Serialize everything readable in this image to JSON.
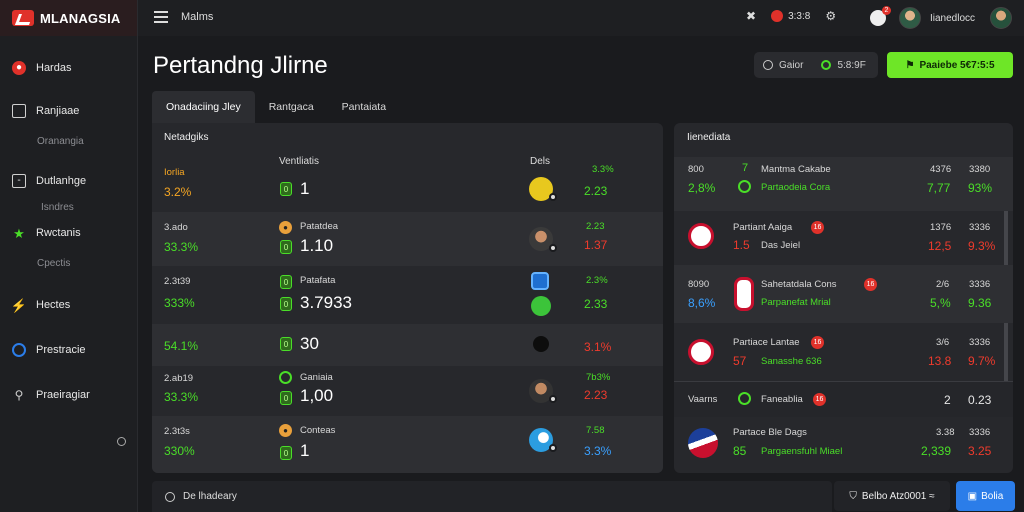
{
  "brand": {
    "name": "MLANAGSIA"
  },
  "topbar": {
    "menu_label": "Malms",
    "stat": "3:3:8",
    "user": "Iianedlocc"
  },
  "sidebar": {
    "items": [
      {
        "label": "Hardas",
        "icon": "red-circle-icon"
      },
      {
        "label": "Ranjiaae",
        "icon": "box-icon"
      },
      {
        "label": "Oranangia",
        "sub": true
      },
      {
        "label": "Dutlanhge",
        "icon": "square-icon"
      },
      {
        "label": "Isndres",
        "sub": true
      },
      {
        "label": "Rwctanis",
        "icon": "star-icon"
      },
      {
        "label": "Cpectis",
        "sub": true
      },
      {
        "label": "Hectes",
        "icon": "green-bolt-icon"
      },
      {
        "label": "Prestracie",
        "icon": "blue-ring-icon"
      },
      {
        "label": "Praeiragiar",
        "icon": "person-icon"
      }
    ]
  },
  "header": {
    "title": "Pertandng Jlirne",
    "search_label": "Gaior",
    "search_value": "5:8:9F",
    "cta_label": "Paaiebe 5€7:5:5"
  },
  "tabs": [
    {
      "label": "Onadaciing Jley",
      "active": true
    },
    {
      "label": "Rantgaca"
    },
    {
      "label": "Pantaiata"
    }
  ],
  "main_panel": {
    "head": "Netadgiks",
    "col_team": "Ventliatis",
    "col_odds": "Dels",
    "rows": [
      {
        "a": "Iorlia",
        "b": "3.2%",
        "b_color": "orange",
        "c_name": "",
        "c_val": "1",
        "c_ico": "g",
        "d_top": "3.3%",
        "d_val": "2.23",
        "d_color": "green",
        "ico": "yellow-ball-icon"
      },
      {
        "a": "3.ado",
        "b": "33.3%",
        "b_color": "green",
        "c_name": "Patatdea",
        "c_val": "1.10",
        "c_ico": "g",
        "d_top": "2.23",
        "d_val": "1.37",
        "d_color": "red",
        "ico": "player-avatar-icon"
      },
      {
        "a": "2.3t39",
        "b": "333%",
        "b_color": "green",
        "c_name": "Patafata",
        "c_val": "3.7933",
        "c_ico": "g",
        "d_top": "2.3%",
        "d_val": "2.33",
        "d_color": "green",
        "ico": "blue-shield-icon"
      },
      {
        "a": "",
        "b": "54.1%",
        "b_color": "green",
        "c_name": "",
        "c_val": "30",
        "c_ico": "g",
        "d_top": "",
        "d_val": "3.1%",
        "d_color": "red",
        "ico": "dark-ball-icon"
      },
      {
        "a": "2.ab19",
        "b": "33.3%",
        "b_color": "green",
        "c_name": "Ganiaia",
        "c_val": "1,00",
        "c_ico": "g",
        "d_top": "7b3%",
        "d_val": "2.23",
        "d_color": "red",
        "ico": "player-avatar-icon"
      },
      {
        "a": "2.3t3s",
        "b": "330%",
        "b_color": "green",
        "c_name": "Conteas",
        "c_val": "1",
        "c_ico": "g",
        "d_top": "7.58",
        "d_val": "3.3%",
        "d_color": "blue",
        "ico": "globe-icon"
      }
    ]
  },
  "right_panel": {
    "head": "Iienediata",
    "rows": [
      {
        "l1": "800",
        "l2": "2,8%",
        "l2_color": "green",
        "t1": "Mantma Cakabe",
        "t2": "Partaodeia Cora",
        "v1": "4376",
        "v2": "7,77",
        "v2_color": "green",
        "w1": "3380",
        "w2": "93%",
        "w2_color": "green"
      },
      {
        "l1": "",
        "l2": "1.5",
        "l2_color": "red",
        "t1": "Partiant Aaiga",
        "t2": "Das Jeiel",
        "v1": "1376",
        "v2": "12,5",
        "v2_color": "red",
        "w1": "3336",
        "w2": "9.3%",
        "w2_color": "red"
      },
      {
        "l1": "8090",
        "l2": "8,6%",
        "l2_color": "blue",
        "t1": "Sahetatdala Cons",
        "t2": "Parpanefat Mrial",
        "v1": "2/6",
        "v2": "5,%",
        "v2_color": "green",
        "w1": "3336",
        "w2": "9.36",
        "w2_color": "green"
      },
      {
        "l1": "",
        "l2": "57",
        "l2_color": "red",
        "t1": "Partiace Lantae",
        "t2": "Sanasshe 636",
        "v1": "3/6",
        "v2": "13.8",
        "v2_color": "red",
        "w1": "3336",
        "w2": "9.7%",
        "w2_color": "red"
      }
    ],
    "mid": {
      "label": "Vaarns",
      "team": "Faneablia",
      "v": "2",
      "w": "0.23"
    },
    "last": {
      "t1": "Partace Ble Dags",
      "l2": "85",
      "t2": "Pargaensfuhl Miael",
      "v1": "3.38",
      "v2": "2,339",
      "w1": "3336",
      "w2": "3.25"
    }
  },
  "bottom": {
    "search_label": "De lhadeary",
    "pill_label": "Belbo Atz0001 ≈",
    "button_label": "Bolia"
  },
  "colors": {
    "accent_green": "#6ee627",
    "brand_red": "#e0312a",
    "blue": "#2b7de9"
  }
}
